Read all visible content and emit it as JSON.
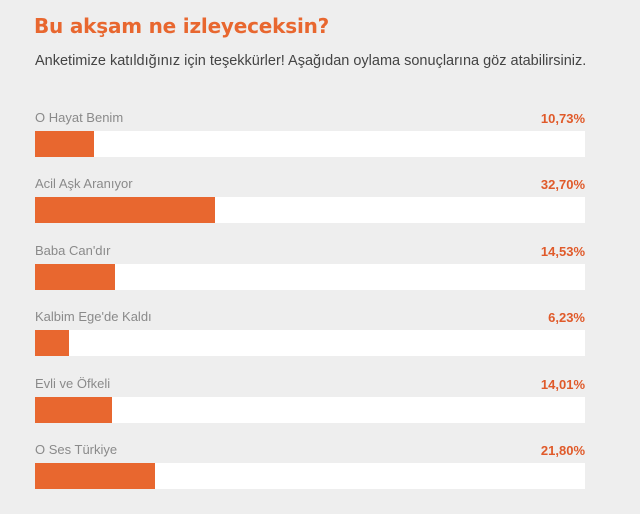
{
  "poll": {
    "title": "Bu akşam ne izleyeceksin?",
    "subtitle": "Anketimize katıldığınız için teşekkürler! Aşağıdan oylama sonuçlarına göz atabilirsiniz.",
    "accent_color": "#e8672f",
    "results": [
      {
        "label": "O Hayat Benim",
        "percent_text": "10,73%",
        "value": 10.73
      },
      {
        "label": "Acil Aşk Aranıyor",
        "percent_text": "32,70%",
        "value": 32.7
      },
      {
        "label": "Baba Can'dır",
        "percent_text": "14,53%",
        "value": 14.53
      },
      {
        "label": "Kalbim Ege'de Kaldı",
        "percent_text": "6,23%",
        "value": 6.23
      },
      {
        "label": "Evli ve Öfkeli",
        "percent_text": "14,01%",
        "value": 14.01
      },
      {
        "label": "O Ses Türkiye",
        "percent_text": "21,80%",
        "value": 21.8
      }
    ]
  }
}
